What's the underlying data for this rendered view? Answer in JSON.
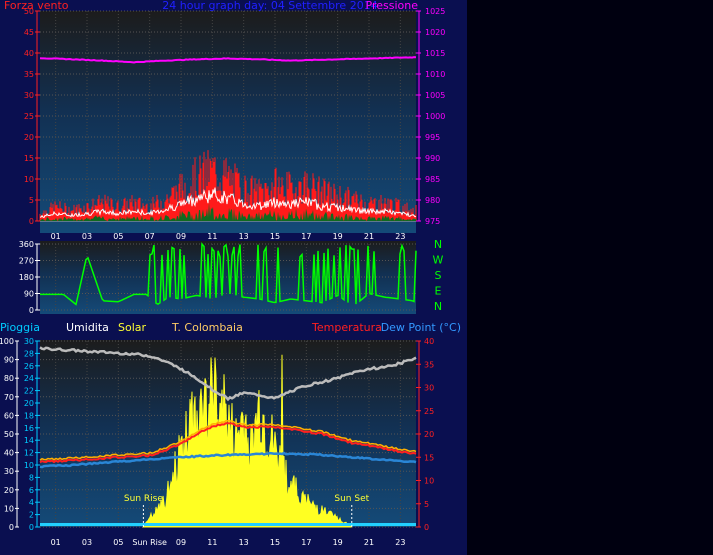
{
  "background_color": "#0a0f50",
  "rightbar_color": "#000010",
  "charts": {
    "wind": {
      "header_left": "Forza vento",
      "header_center": "24 hour graph day:  04 Settembre 2014",
      "header_right": "Pressione",
      "left_axis": {
        "ticks": [
          0,
          5,
          10,
          15,
          20,
          25,
          30,
          35,
          40,
          45,
          50
        ],
        "color": "#ff2020"
      },
      "right_axis": {
        "ticks": [
          975,
          980,
          985,
          990,
          995,
          1000,
          1005,
          1010,
          1015,
          1020,
          1025
        ],
        "color": "#ff00ff"
      },
      "x_ticks": [
        "01",
        "03",
        "05",
        "07",
        "09",
        "11",
        "13",
        "15",
        "17",
        "19",
        "21",
        "23"
      ]
    },
    "direction": {
      "left_axis": {
        "ticks": [
          0,
          90,
          180,
          270,
          360
        ],
        "color": "#ffffff"
      },
      "compass": [
        "N",
        "W",
        "S",
        "E",
        "N"
      ],
      "compass_color": "#00ff00",
      "line_color": "#00ff00"
    },
    "temperature": {
      "legend": {
        "rain": "Pioggia",
        "humidity": "Umidita",
        "solar": "Solar",
        "site": "T. Colombaia",
        "temperature": "Temperatura",
        "dewpoint": "Dew Point (°C)"
      },
      "legend_colors": {
        "rain": "#00ccff",
        "humidity": "#ffffff",
        "solar": "#ffff33",
        "site": "#ffcc66",
        "temperature": "#ff2020",
        "dewpoint": "#3399ff"
      },
      "left_axis_1": [
        0,
        10,
        20,
        30,
        40,
        50,
        60,
        70,
        80,
        90,
        100
      ],
      "left_axis_2": [
        0,
        2,
        4,
        6,
        8,
        10,
        12,
        14,
        16,
        18,
        20,
        22,
        24,
        26,
        28,
        30
      ],
      "right_axis": [
        0,
        5,
        10,
        15,
        20,
        25,
        30,
        35,
        40
      ],
      "x_ticks": [
        "01",
        "03",
        "05",
        "Sun Rise",
        "09",
        "11",
        "13",
        "15",
        "17",
        "19",
        "21",
        "23"
      ],
      "sun_rise": "Sun Rise",
      "sun_set": "Sun Set",
      "sun_rise_hour": 6.6,
      "sun_set_hour": 19.9
    }
  },
  "chart_data": [
    {
      "type": "line",
      "title": "24 hour graph day:  04 Settembre 2014",
      "x": "hours 0-24",
      "xlim": [
        0,
        24
      ],
      "series": [
        {
          "name": "Forza vento",
          "axis": "left",
          "ylim": [
            0,
            50
          ],
          "hours": [
            0,
            1,
            2,
            3,
            4,
            5,
            6,
            7,
            8,
            9,
            10,
            11,
            12,
            13,
            14,
            15,
            16,
            17,
            18,
            19,
            20,
            21,
            22,
            23,
            24
          ],
          "values": [
            2,
            4,
            3,
            4,
            5,
            4,
            5,
            4,
            6,
            9,
            12,
            14,
            12,
            9,
            8,
            10,
            9,
            10,
            8,
            7,
            6,
            5,
            5,
            4,
            3
          ]
        },
        {
          "name": "Pressione",
          "axis": "right",
          "ylim": [
            975,
            1025
          ],
          "hours": [
            0,
            2,
            4,
            6,
            8,
            10,
            12,
            14,
            16,
            18,
            20,
            22,
            24
          ],
          "values": [
            1013.8,
            1013.5,
            1013.2,
            1012.8,
            1013.2,
            1013.5,
            1013.7,
            1013.5,
            1013.2,
            1013.4,
            1013.6,
            1013.8,
            1014
          ]
        }
      ]
    },
    {
      "type": "line",
      "title": "",
      "xlim": [
        0,
        24
      ],
      "ylim": [
        0,
        360
      ],
      "series": [
        {
          "name": "",
          "hours": [
            0,
            1.5,
            2.3,
            3,
            4,
            5,
            6,
            6.8,
            7.5,
            8.2,
            9,
            10,
            11,
            12,
            13,
            14,
            15,
            16,
            17,
            18,
            19,
            20,
            21,
            22,
            23,
            23.8,
            24
          ],
          "values": [
            85,
            85,
            30,
            300,
            50,
            45,
            85,
            85,
            30,
            70,
            60,
            80,
            60,
            90,
            70,
            60,
            40,
            60,
            50,
            40,
            80,
            20,
            90,
            70,
            60,
            50,
            40
          ]
        }
      ]
    },
    {
      "type": "line",
      "title": "",
      "xlim": [
        0,
        24
      ],
      "series": [
        {
          "name": "Umidita",
          "axis": "left_pct",
          "ylim": [
            0,
            100
          ],
          "hours": [
            0,
            2,
            4,
            6,
            7,
            8,
            9,
            10,
            11,
            12,
            13,
            14,
            15,
            16,
            17,
            18,
            19,
            20,
            21,
            22,
            23,
            24
          ],
          "values": [
            96,
            95,
            94,
            93,
            92,
            89,
            85,
            80,
            74,
            69,
            72,
            71,
            69,
            73,
            76,
            78,
            80,
            83,
            85,
            86,
            88,
            91
          ]
        },
        {
          "name": "Solar",
          "axis": "left_pct",
          "ylim": [
            0,
            100
          ],
          "hours": [
            6.6,
            7,
            8,
            9,
            10,
            11,
            11.5,
            12,
            12.5,
            13,
            13.5,
            14,
            15,
            16,
            17,
            18,
            19,
            19.9
          ],
          "values": [
            0,
            5,
            15,
            45,
            65,
            75,
            80,
            60,
            50,
            65,
            45,
            70,
            45,
            25,
            15,
            10,
            5,
            0
          ]
        },
        {
          "name": "Temperatura",
          "axis": "right",
          "ylim": [
            0,
            40
          ],
          "hours": [
            0,
            2,
            4,
            6,
            7,
            8,
            9,
            10,
            11,
            12,
            13,
            14,
            15,
            16,
            17,
            18,
            19,
            20,
            21,
            22,
            23,
            24
          ],
          "values": [
            14,
            14.3,
            14.8,
            15.2,
            15.4,
            16.5,
            18,
            20,
            21.5,
            22.5,
            21.5,
            21.5,
            21.5,
            21,
            20.5,
            20,
            19,
            18,
            17.5,
            16.8,
            16.2,
            15.7
          ]
        },
        {
          "name": "Dew Point (°C)",
          "axis": "right",
          "ylim": [
            0,
            40
          ],
          "hours": [
            0,
            2,
            4,
            6,
            8,
            10,
            12,
            14,
            16,
            18,
            20,
            22,
            24
          ],
          "values": [
            13,
            13.3,
            13.8,
            14.3,
            14.8,
            15.2,
            15.5,
            15.7,
            15.8,
            15.5,
            15,
            14.4,
            14
          ]
        }
      ]
    }
  ]
}
